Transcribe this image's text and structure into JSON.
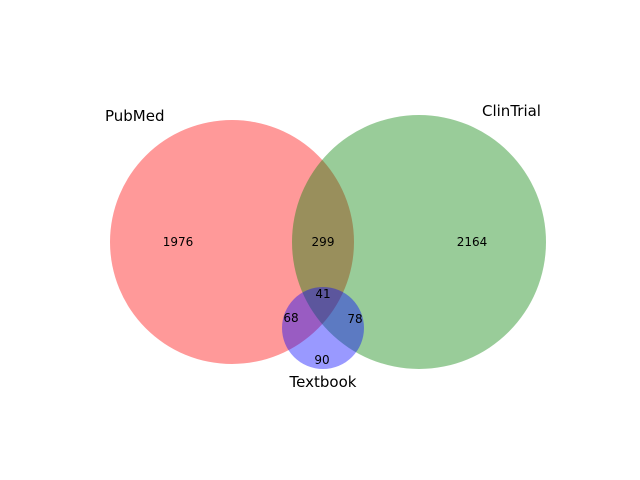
{
  "chart_data": {
    "type": "venn",
    "sets": [
      {
        "key": "A",
        "name": "PubMed",
        "color": "#ff0000"
      },
      {
        "key": "B",
        "name": "ClinTrial",
        "color": "#008000"
      },
      {
        "key": "C",
        "name": "Textbook",
        "color": "#0000ff"
      }
    ],
    "regions": [
      {
        "sets": "A",
        "value": "1976"
      },
      {
        "sets": "B",
        "value": "2164"
      },
      {
        "sets": "AB",
        "value": "299"
      },
      {
        "sets": "C",
        "value": "90"
      },
      {
        "sets": "AC",
        "value": "68"
      },
      {
        "sets": "BC",
        "value": "78"
      },
      {
        "sets": "ABC",
        "value": "41"
      }
    ],
    "fill_opacity": 0.4
  }
}
